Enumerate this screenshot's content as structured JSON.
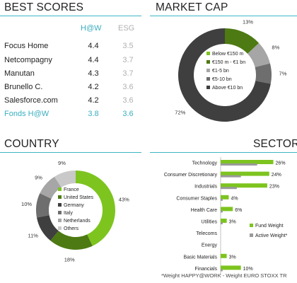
{
  "colors": {
    "accent": "#3db7c4",
    "green_bright": "#7dc41f",
    "green_dark": "#4d7a12",
    "gray_dark": "#3f3f3f",
    "gray_mid": "#6e6e6e",
    "gray_light": "#a6a6a6",
    "gray_lightest": "#c9c9c9"
  },
  "best_scores": {
    "title": "BEST SCORES",
    "col_hw": "H@W",
    "col_esg": "ESG",
    "rows": [
      {
        "name": "Focus Home",
        "hw": "4.4",
        "esg": "3.5"
      },
      {
        "name": "Netcompagny",
        "hw": "4.4",
        "esg": "3.7"
      },
      {
        "name": "Manutan",
        "hw": "4.3",
        "esg": "3.7"
      },
      {
        "name": "Brunello C.",
        "hw": "4.2",
        "esg": "3.6"
      },
      {
        "name": "Salesforce.com",
        "hw": "4.2",
        "esg": "3.6"
      }
    ],
    "fund": {
      "name": "Fonds H@W",
      "hw": "3.8",
      "esg": "3.6"
    }
  },
  "chart_data": [
    {
      "type": "pie",
      "title": "MARKET CAP",
      "categories": [
        "Below €150 m",
        "€150 m - €1 bn",
        "€1-5 bn",
        "€5-10 bn",
        "Above €10 bn"
      ],
      "values": [
        0,
        13,
        8,
        7,
        72
      ],
      "value_labels": [
        "",
        "13%",
        "8%",
        "7%",
        "72%"
      ],
      "colors": [
        "#7dc41f",
        "#4d7a12",
        "#a6a6a6",
        "#6e6e6e",
        "#3f3f3f"
      ],
      "legend": "center"
    },
    {
      "type": "pie",
      "title": "COUNTRY",
      "categories": [
        "France",
        "United States",
        "Germany",
        "Italy",
        "Netherlands",
        "Others"
      ],
      "values": [
        43,
        18,
        11,
        10,
        9,
        9
      ],
      "value_labels": [
        "43%",
        "18%",
        "11%",
        "10%",
        "9%",
        "9%"
      ],
      "colors": [
        "#7dc41f",
        "#4d7a12",
        "#3f3f3f",
        "#6e6e6e",
        "#a6a6a6",
        "#c9c9c9"
      ],
      "legend": "center"
    },
    {
      "type": "bar",
      "title": "SECTOR",
      "categories": [
        "Technology",
        "Consumer Discretionary",
        "Industrials",
        "Consumer Staples",
        "Health Care",
        "Utilities",
        "Telecoms",
        "Energy",
        "Basic Materials",
        "Financials"
      ],
      "series": [
        {
          "name": "Fund Weight",
          "values": [
            26,
            24,
            23,
            4,
            6,
            3,
            0,
            0,
            3,
            10
          ]
        },
        {
          "name": "Active Weight*",
          "values": [
            18,
            10,
            8,
            1,
            1,
            1,
            0,
            0,
            0,
            1
          ]
        }
      ],
      "value_labels": [
        "26%",
        "24%",
        "23%",
        "4%",
        "6%",
        "3%",
        "",
        "",
        "3%",
        "10%"
      ],
      "footnote": "*Weight HAPPY@WORK - Weight EURO STOXX TR",
      "legend": "right",
      "xlim": [
        0,
        30
      ]
    }
  ]
}
